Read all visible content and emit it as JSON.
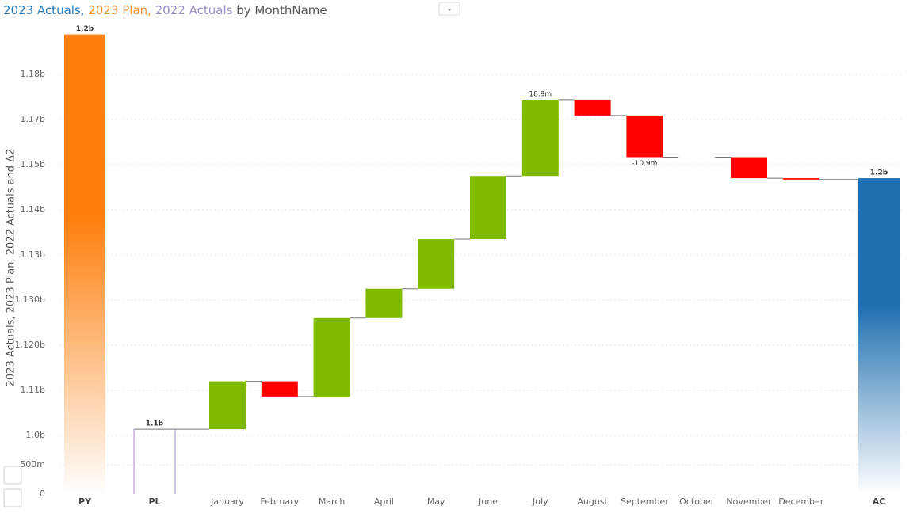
{
  "chart_data": {
    "type": "waterfall",
    "title_parts": [
      {
        "text": "2023 Actuals, ",
        "color": "#2b7bb9"
      },
      {
        "text": "2023 Plan, ",
        "color": "#f28e2b"
      },
      {
        "text": "2022 Actuals ",
        "color": "#9d8ec4"
      },
      {
        "text": "by MonthName",
        "color": "#555555"
      }
    ],
    "y_label": "2023 Actuals, 2023 Plan, 2022 Actuals and Δ2",
    "ylim": [
      0,
      1186
    ],
    "yticks": [
      0,
      {
        "value": 500,
        "label": "500m"
      },
      {
        "value": 1045,
        "label": "1.0b"
      },
      {
        "value": 1110,
        "label": "1.11b"
      },
      {
        "value": 1120,
        "label": "1.120b"
      },
      {
        "value": 1130,
        "label": "1.130b"
      },
      {
        "value": 1134,
        "label": "1.13b"
      },
      {
        "value": 1144,
        "label": "1.14b"
      },
      {
        "value": 1154,
        "label": "1.15b"
      },
      {
        "value": 1166,
        "label": "1.17b"
      },
      {
        "value": 1176,
        "label": "1.18b"
      }
    ],
    "grid": true,
    "totals_start": [
      {
        "name": "PY",
        "value": 1185,
        "value_label": "1.2b",
        "color": "#ff7f0e"
      },
      {
        "name": "PL",
        "value": 1054,
        "value_label": "1.1b",
        "color": "#a98bd1"
      }
    ],
    "categories": [
      "January",
      "February",
      "March",
      "April",
      "May",
      "June",
      "July",
      "August",
      "September",
      "October",
      "November",
      "December"
    ],
    "values": [
      58,
      -11,
      25,
      5,
      6.5,
      14,
      18.9,
      -3.5,
      -10.9,
      0,
      -5,
      -0.3
    ],
    "value_labels": [
      null,
      null,
      null,
      null,
      null,
      null,
      "18.9m",
      null,
      "-10.9m",
      null,
      null,
      null
    ],
    "increase_color": "#7fba00",
    "decrease_color": "#ff0000",
    "total_end": {
      "name": "AC",
      "value": 1151,
      "value_label": "1.2b",
      "color": "#1f6fb0"
    }
  }
}
